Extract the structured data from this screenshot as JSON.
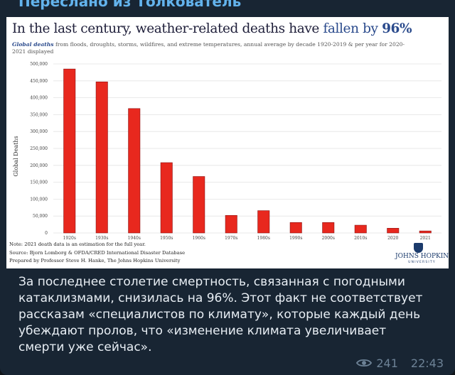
{
  "forward": {
    "label": "Переслано из Толкователь"
  },
  "image": {
    "title_main": "In the last century, weather-related deaths have ",
    "title_highlight": "fallen by ",
    "title_pct": "96%",
    "subtitle_lead": "Global deaths",
    "subtitle_rest": " from floods, droughts, storms, wildfires, and extreme temperatures, annual average by decade 1920-2019 & per year for 2020-2021 displayed",
    "note": "Note: 2021 death data is an estimation for the full year.",
    "source": "Source: Bjorn Lomborg & OFDA/CRED International Disaster Database",
    "prepared": "Prepared by Professor Steve H. Hanke, The Johns Hopkins University",
    "logo_name": "JOHNS HOPKINS",
    "logo_sub": "UNIVERSITY"
  },
  "chart_data": {
    "type": "bar",
    "ylabel": "Global Deaths",
    "ylim": [
      0,
      500000
    ],
    "yticks": [
      "0",
      "50,000",
      "100,000",
      "150,000",
      "200,000",
      "250,000",
      "300,000",
      "350,000",
      "400,000",
      "450,000",
      "500,000"
    ],
    "ytick_values": [
      0,
      50000,
      100000,
      150000,
      200000,
      250000,
      300000,
      350000,
      400000,
      450000,
      500000
    ],
    "categories": [
      "1920s",
      "1930s",
      "1940s",
      "1950s",
      "1960s",
      "1970s",
      "1980s",
      "1990s",
      "2000s",
      "2010s",
      "2020",
      "2021"
    ],
    "values": [
      485000,
      447000,
      368000,
      208000,
      167000,
      52000,
      66000,
      31000,
      31000,
      23000,
      14000,
      6000
    ],
    "bar_color": "#e8281e",
    "grid": true
  },
  "message": {
    "text": "За последнее столетие смертность, связанная с погодными катаклизмами, снизилась на 96%. Этот факт не соответствует рассказам «специалистов по климату», которые каждый день убеждают пролов, что «изменение климата увеличивает смерти уже сейчас».",
    "views": "241",
    "time": "22:43"
  },
  "colors": {
    "bubble": "#182533",
    "link": "#63b3ed",
    "meta": "#6d8296"
  },
  "icons": {
    "views": "eye-icon"
  }
}
